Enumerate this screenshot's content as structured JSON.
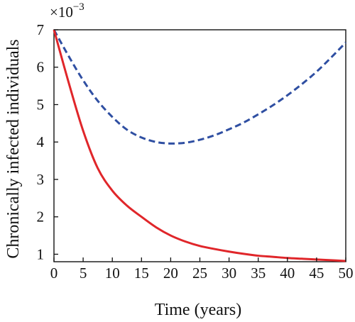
{
  "chart_data": {
    "type": "line",
    "title": "",
    "xlabel": "Time (years)",
    "ylabel": "Chronically infected individuals",
    "y_multiplier_label": "×10",
    "y_multiplier_exponent": "−3",
    "xlim": [
      0,
      50
    ],
    "ylim": [
      0.8,
      7
    ],
    "x_ticks": [
      0,
      5,
      10,
      15,
      20,
      25,
      30,
      35,
      40,
      45,
      50
    ],
    "y_ticks": [
      1,
      2,
      3,
      4,
      5,
      6,
      7
    ],
    "grid": false,
    "legend": "none",
    "series": [
      {
        "style": "dashed",
        "color": "#2f4fa2",
        "x": [
          0,
          2.5,
          5,
          7.5,
          10,
          12.5,
          15,
          17.5,
          20,
          22.5,
          25,
          27.5,
          30,
          32.5,
          35,
          37.5,
          40,
          42.5,
          45,
          47.5,
          50
        ],
        "y": [
          7.0,
          6.3,
          5.65,
          5.1,
          4.67,
          4.33,
          4.12,
          4.0,
          3.96,
          3.98,
          4.06,
          4.18,
          4.34,
          4.52,
          4.74,
          4.98,
          5.25,
          5.55,
          5.88,
          6.26,
          6.66
        ]
      },
      {
        "style": "solid",
        "color": "#e0262a",
        "x": [
          0,
          2.5,
          5,
          7.5,
          10,
          12.5,
          15,
          17.5,
          20,
          22.5,
          25,
          27.5,
          30,
          32.5,
          35,
          37.5,
          40,
          42.5,
          45,
          47.5,
          50
        ],
        "y": [
          7.0,
          5.6,
          4.3,
          3.3,
          2.7,
          2.3,
          2.0,
          1.72,
          1.5,
          1.34,
          1.22,
          1.14,
          1.07,
          1.01,
          0.96,
          0.93,
          0.9,
          0.88,
          0.86,
          0.84,
          0.82
        ]
      }
    ]
  }
}
